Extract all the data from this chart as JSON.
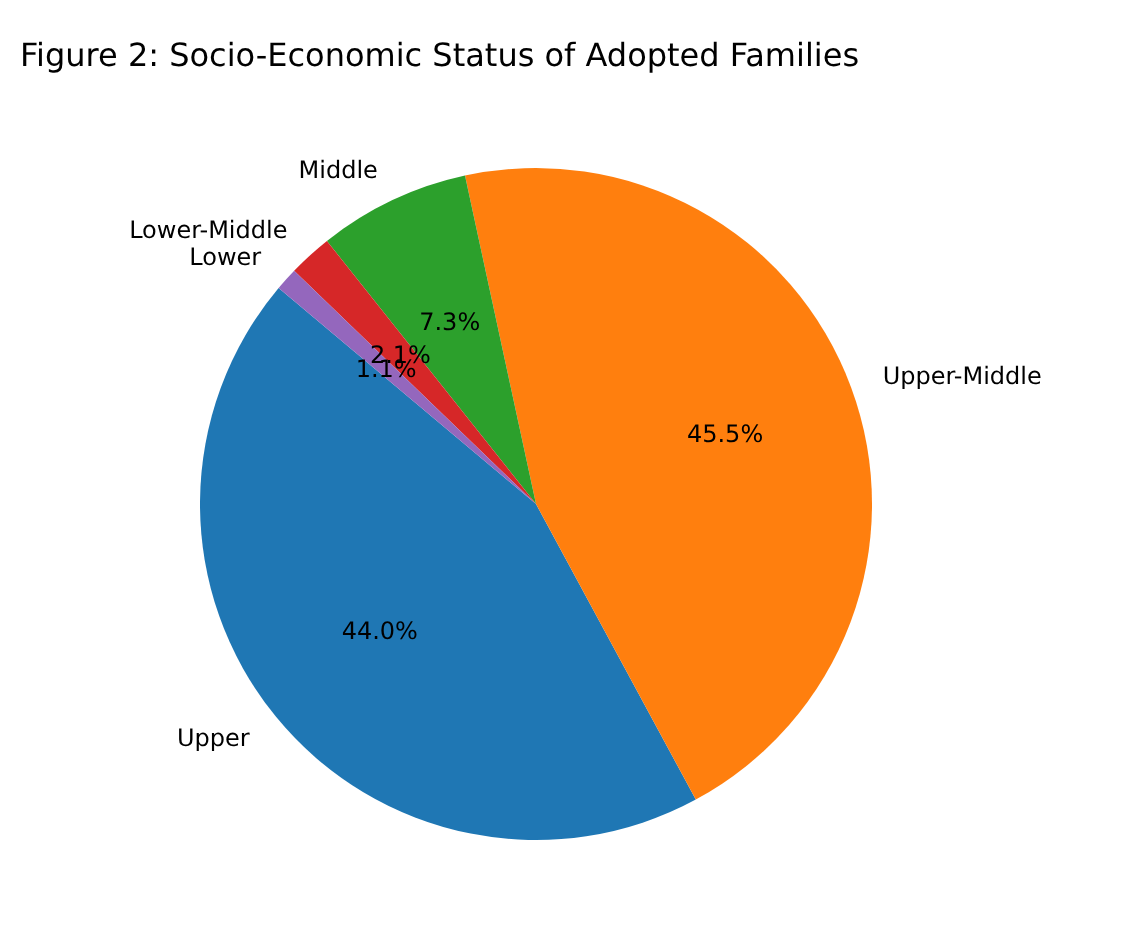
{
  "chart_data": {
    "type": "pie",
    "title": "Figure 2: Socio-Economic Status of Adopted Families",
    "categories": [
      "Upper",
      "Upper-Middle",
      "Middle",
      "Lower-Middle",
      "Lower"
    ],
    "values": [
      44.0,
      45.5,
      7.3,
      2.1,
      1.1
    ],
    "colors": [
      "#1f77b4",
      "#ff7f0e",
      "#2ca02c",
      "#d62728",
      "#9467bd"
    ],
    "value_labels": [
      "44.0%",
      "45.5%",
      "7.3%",
      "2.1%",
      "1.1%"
    ]
  }
}
